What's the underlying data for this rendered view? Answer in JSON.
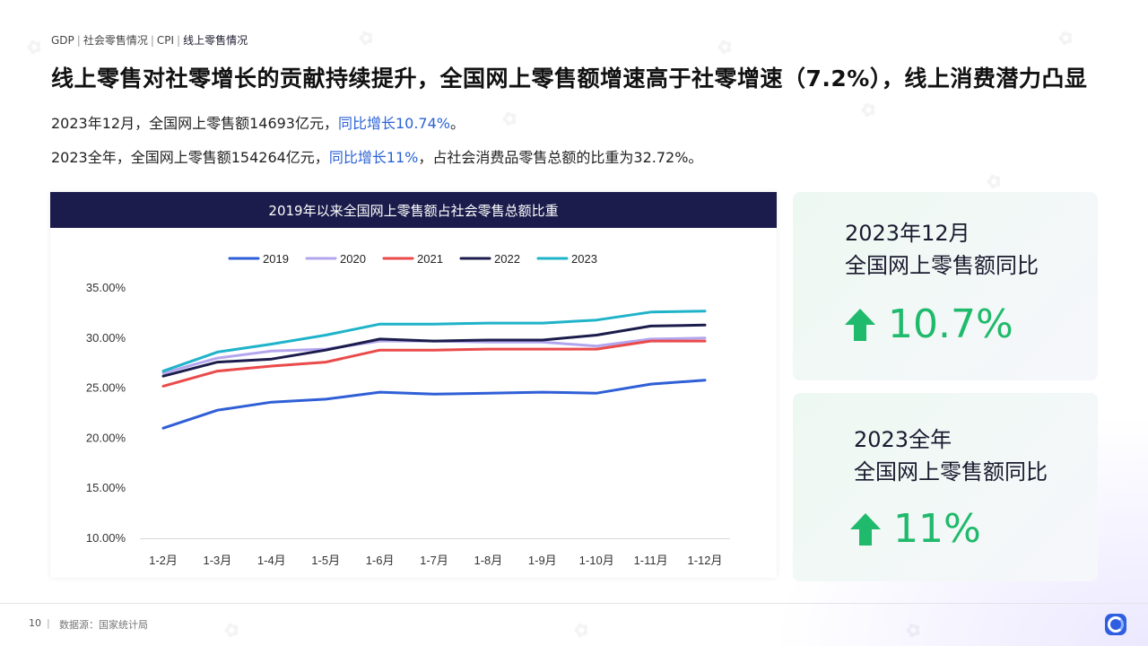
{
  "breadcrumb": {
    "items": [
      "GDP",
      "社会零售情况",
      "CPI",
      "线上零售情况"
    ]
  },
  "title": "线上零售对社零增长的贡献持续提升，全国网上零售额增速高于社零增速（7.2%），线上消费潜力凸显",
  "summary": {
    "line1_pre": "2023年12月，全国网上零售额14693亿元，",
    "line1_hl": "同比增长10.74%",
    "line1_post": "。",
    "line2_pre": "2023全年，全国网上零售额154264亿元，",
    "line2_hl": "同比增长11%",
    "line2_post": "，占社会消费品零售总额的比重为32.72%。"
  },
  "chart_title": "2019年以来全国网上零售额占社会零售总额比重",
  "chart_data": {
    "type": "line",
    "title": "2019年以来全国网上零售额占社会零售总额比重",
    "categories": [
      "1-2月",
      "1-3月",
      "1-4月",
      "1-5月",
      "1-6月",
      "1-7月",
      "1-8月",
      "1-9月",
      "1-10月",
      "1-11月",
      "1-12月"
    ],
    "ylim": [
      10,
      35
    ],
    "yticks": [
      10,
      15,
      20,
      25,
      30,
      35
    ],
    "ytick_labels": [
      "10.00%",
      "15.00%",
      "20.00%",
      "25.00%",
      "30.00%",
      "35.00%"
    ],
    "xlabel": "",
    "ylabel": "",
    "grid": false,
    "legend_position": "top",
    "series": [
      {
        "name": "2019",
        "color": "#2f5fd6",
        "values": [
          21.0,
          22.8,
          23.6,
          23.9,
          24.6,
          24.4,
          24.5,
          24.6,
          24.5,
          25.4,
          25.8
        ]
      },
      {
        "name": "2020",
        "color": "#b3a6ee",
        "values": [
          26.5,
          28.0,
          28.7,
          28.9,
          29.7,
          29.7,
          29.6,
          29.6,
          29.2,
          29.9,
          30.0
        ]
      },
      {
        "name": "2021",
        "color": "#ea4a4a",
        "values": [
          25.2,
          26.7,
          27.2,
          27.6,
          28.8,
          28.8,
          28.9,
          28.9,
          28.9,
          29.7,
          29.7
        ]
      },
      {
        "name": "2022",
        "color": "#1b1c4b",
        "values": [
          26.2,
          27.6,
          27.9,
          28.8,
          29.9,
          29.7,
          29.8,
          29.8,
          30.3,
          31.2,
          31.3
        ]
      },
      {
        "name": "2023",
        "color": "#1fb3c9",
        "values": [
          26.7,
          28.6,
          29.4,
          30.3,
          31.4,
          31.4,
          31.5,
          31.5,
          31.8,
          32.6,
          32.7
        ]
      }
    ]
  },
  "cards": [
    {
      "label_line1": "2023年12月",
      "label_line2": "全国网上零售额同比",
      "value": "10.7%",
      "icon": "up-arrow-icon"
    },
    {
      "label_line1": "2023全年",
      "label_line2": "全国网上零售额同比",
      "value": "11%",
      "icon": "up-arrow-icon"
    }
  ],
  "footer": {
    "page_number": "10",
    "source": "数据源：国家统计局"
  },
  "colors": {
    "accent_blue": "#2a62d6",
    "header_navy": "#1b1c4b",
    "positive_green": "#1fba6b"
  }
}
